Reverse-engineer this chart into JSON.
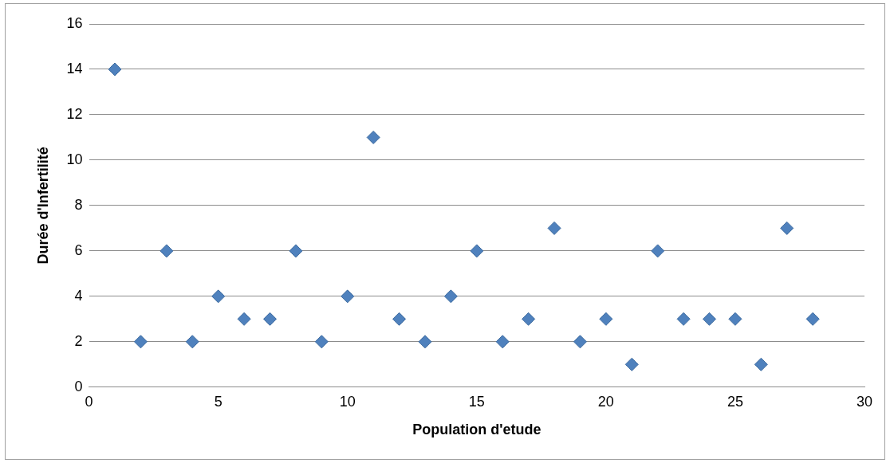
{
  "chart_data": {
    "type": "scatter",
    "xlabel": "Population d'etude",
    "ylabel": "Durée d'Infertilité",
    "x": [
      1,
      2,
      3,
      4,
      5,
      6,
      7,
      8,
      9,
      10,
      11,
      12,
      13,
      14,
      15,
      16,
      17,
      18,
      19,
      20,
      21,
      22,
      23,
      24,
      25,
      26,
      27,
      28
    ],
    "series": [
      {
        "color": "#4f81bd",
        "values": [
          14,
          2,
          6,
          2,
          4,
          3,
          3,
          6,
          2,
          4,
          11,
          3,
          2,
          4,
          6,
          2,
          3,
          7,
          2,
          3,
          1,
          6,
          3,
          3,
          3,
          1,
          7,
          3
        ]
      }
    ],
    "xlim": [
      0,
      30
    ],
    "xticks": [
      0,
      5,
      10,
      15,
      20,
      25,
      30
    ],
    "ylim": [
      0,
      16
    ],
    "yticks": [
      0,
      2,
      4,
      6,
      8,
      10,
      12,
      14,
      16
    ],
    "grid": "y",
    "legend": false,
    "marker": "diamond"
  }
}
